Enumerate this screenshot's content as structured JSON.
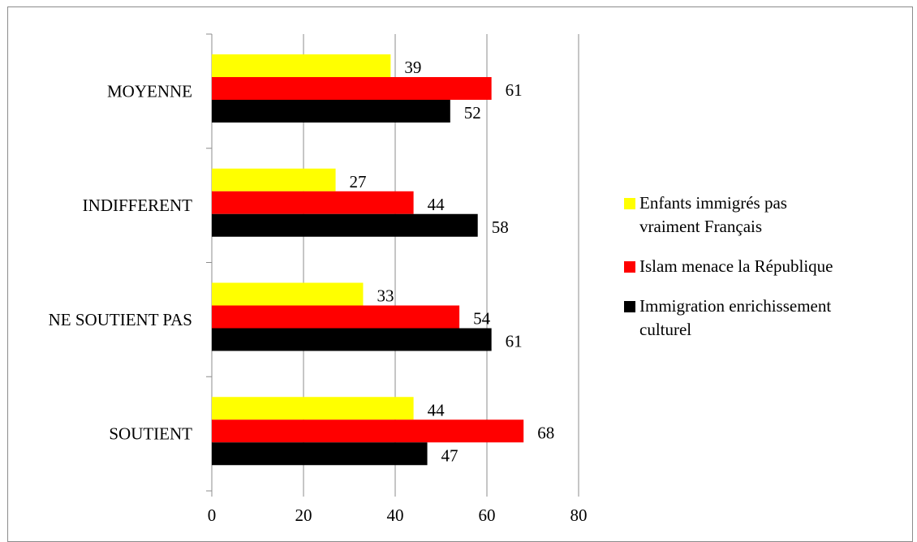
{
  "chart_data": {
    "type": "bar",
    "orientation": "horizontal",
    "categories": [
      "MOYENNE",
      "INDIFFERENT",
      "NE SOUTIENT PAS",
      "SOUTIENT"
    ],
    "series": [
      {
        "name": "Enfants immigrés pas vraiment Français",
        "color": "#ffff00",
        "values": [
          39,
          27,
          33,
          44
        ]
      },
      {
        "name": "Islam menace la République",
        "color": "#ff0000",
        "values": [
          61,
          44,
          54,
          68
        ]
      },
      {
        "name": "Immigration enrichissement culturel",
        "color": "#000000",
        "values": [
          52,
          58,
          61,
          47
        ]
      }
    ],
    "xlim": [
      0,
      80
    ],
    "x_ticks": [
      "0",
      "20",
      "40",
      "60",
      "80"
    ],
    "grid": "vertical",
    "legend_position": "right",
    "data_labels": true
  },
  "legend": {
    "items": [
      {
        "label_line1": "Enfants immigrés pas",
        "label_line2": "vraiment Français",
        "color": "#ffff00"
      },
      {
        "label_line1": "Islam menace la République",
        "color": "#ff0000"
      },
      {
        "label_line1": "Immigration enrichissement",
        "label_line2": "culturel",
        "color": "#000000"
      }
    ]
  }
}
